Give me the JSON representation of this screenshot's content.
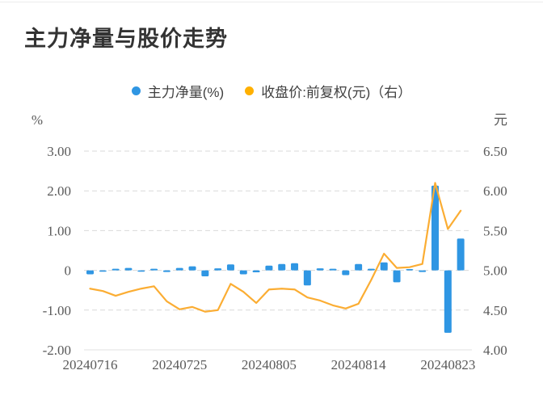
{
  "page": {
    "title": "主力净量与股价走势"
  },
  "legend": [
    {
      "label": "主力净量(%)",
      "color": "#2f96e3"
    },
    {
      "label": "收盘价:前复权(元)（右）",
      "color": "#ffb000"
    }
  ],
  "chart_data": {
    "type": "bar",
    "subtype": "bar+line dual axis",
    "title": "主力净量与股价走势",
    "x": [
      "20240716",
      "20240717",
      "20240718",
      "20240719",
      "20240722",
      "20240723",
      "20240724",
      "20240725",
      "20240726",
      "20240729",
      "20240730",
      "20240731",
      "20240801",
      "20240802",
      "20240805",
      "20240806",
      "20240807",
      "20240808",
      "20240809",
      "20240812",
      "20240813",
      "20240814",
      "20240815",
      "20240816",
      "20240819",
      "20240820",
      "20240821",
      "20240822",
      "20240823",
      "20240826"
    ],
    "x_tick_labels": [
      "20240716",
      "20240725",
      "20240805",
      "20240814",
      "20240823"
    ],
    "series": [
      {
        "name": "主力净量(%)",
        "type": "bar",
        "axis": "left",
        "color": "#2f96e3",
        "values": [
          -0.1,
          -0.03,
          0.04,
          0.06,
          -0.03,
          0.04,
          -0.04,
          0.06,
          0.1,
          -0.15,
          0.05,
          0.15,
          -0.1,
          -0.05,
          0.12,
          0.16,
          0.18,
          -0.38,
          0.05,
          0.04,
          -0.12,
          0.16,
          0.04,
          0.2,
          -0.3,
          0.03,
          -0.04,
          2.13,
          -1.57,
          0.8
        ]
      },
      {
        "name": "收盘价:前复权(元)（右）",
        "type": "line",
        "axis": "right",
        "color": "#fbad33",
        "values": [
          4.77,
          4.74,
          4.68,
          4.73,
          4.77,
          4.8,
          4.61,
          4.51,
          4.54,
          4.48,
          4.5,
          4.83,
          4.73,
          4.59,
          4.76,
          4.77,
          4.76,
          4.66,
          4.62,
          4.56,
          4.52,
          4.58,
          4.88,
          5.21,
          5.03,
          5.04,
          5.08,
          6.1,
          5.52,
          5.75
        ]
      }
    ],
    "left_axis": {
      "unit": "%",
      "min": -2,
      "max": 3,
      "ticks": [
        "3.00",
        "2.00",
        "1.00",
        "0",
        "-1.00",
        "-2.00"
      ]
    },
    "right_axis": {
      "unit": "元",
      "min": 4.0,
      "max": 6.5,
      "ticks": [
        "6.50",
        "6.00",
        "5.50",
        "5.00",
        "4.50",
        "4.00"
      ]
    },
    "grid": "horizontal dashed, bottom axis solid",
    "legend_position": "top center"
  }
}
